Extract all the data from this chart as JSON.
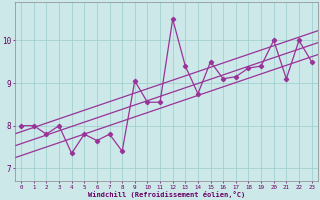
{
  "xlabel": "Windchill (Refroidissement éolien,°C)",
  "xlim": [
    -0.5,
    23.5
  ],
  "ylim": [
    6.7,
    10.9
  ],
  "xticks": [
    0,
    1,
    2,
    3,
    4,
    5,
    6,
    7,
    8,
    9,
    10,
    11,
    12,
    13,
    14,
    15,
    16,
    17,
    18,
    19,
    20,
    21,
    22,
    23
  ],
  "yticks": [
    7,
    8,
    9,
    10
  ],
  "data_x": [
    0,
    1,
    2,
    3,
    4,
    5,
    6,
    7,
    8,
    9,
    10,
    11,
    12,
    13,
    14,
    15,
    16,
    17,
    18,
    19,
    20,
    21,
    22,
    23
  ],
  "data_y": [
    8.0,
    8.0,
    7.8,
    8.0,
    7.35,
    7.8,
    7.65,
    7.8,
    7.4,
    9.05,
    8.55,
    8.55,
    10.5,
    9.4,
    8.75,
    9.5,
    9.1,
    9.15,
    9.35,
    9.4,
    10.0,
    9.1,
    10.0,
    9.5
  ],
  "line_color": "#993399",
  "bg_color": "#cce8e8",
  "grid_color": "#99cccc",
  "tick_label_color": "#660066",
  "xlabel_color": "#660066",
  "marker": "D",
  "marker_size": 2.2,
  "line_width": 0.9,
  "trend_offsets": [
    0.0,
    0.28,
    -0.28
  ],
  "trend_lw": 0.9
}
